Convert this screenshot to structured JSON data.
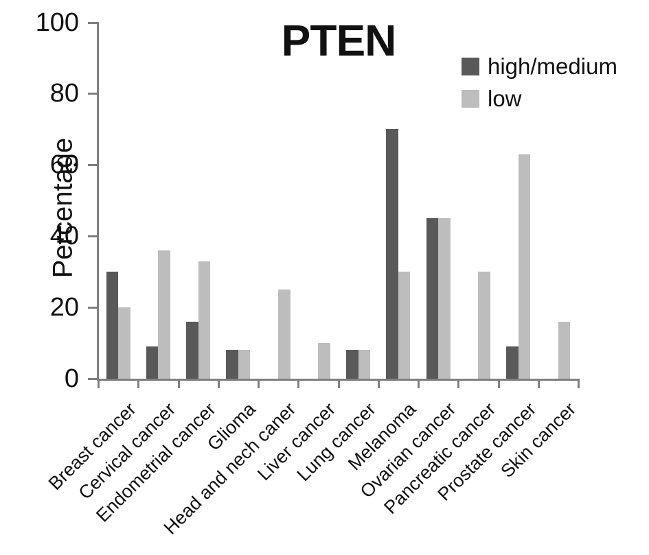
{
  "chart_data": {
    "type": "bar",
    "title": "PTEN",
    "xlabel": "",
    "ylabel": "Percentage",
    "ylim": [
      0,
      100
    ],
    "y_ticks": [
      0,
      20,
      40,
      60,
      80,
      100
    ],
    "grid": false,
    "legend_position": "top-right",
    "categories": [
      "Breast cancer",
      "Cervical cancer",
      "Endometrial cancer",
      "Glioma",
      "Head and nech caner",
      "Liver cancer",
      "Lung cancer",
      "Melanoma",
      "Ovarian cancer",
      "Pancreatic cancer",
      "Prostate cancer",
      "Skin cancer"
    ],
    "series": [
      {
        "name": "high/medium",
        "color": "#595959",
        "values": [
          30,
          9,
          16,
          8,
          0,
          0,
          8,
          70,
          45,
          0,
          9,
          0
        ]
      },
      {
        "name": "low",
        "color": "#bdbdbd",
        "values": [
          20,
          36,
          33,
          8,
          25,
          10,
          8,
          30,
          45,
          30,
          63,
          16
        ]
      }
    ]
  },
  "colors": {
    "axis": "#7f7f7f",
    "text": "#111111",
    "background": "#ffffff"
  }
}
